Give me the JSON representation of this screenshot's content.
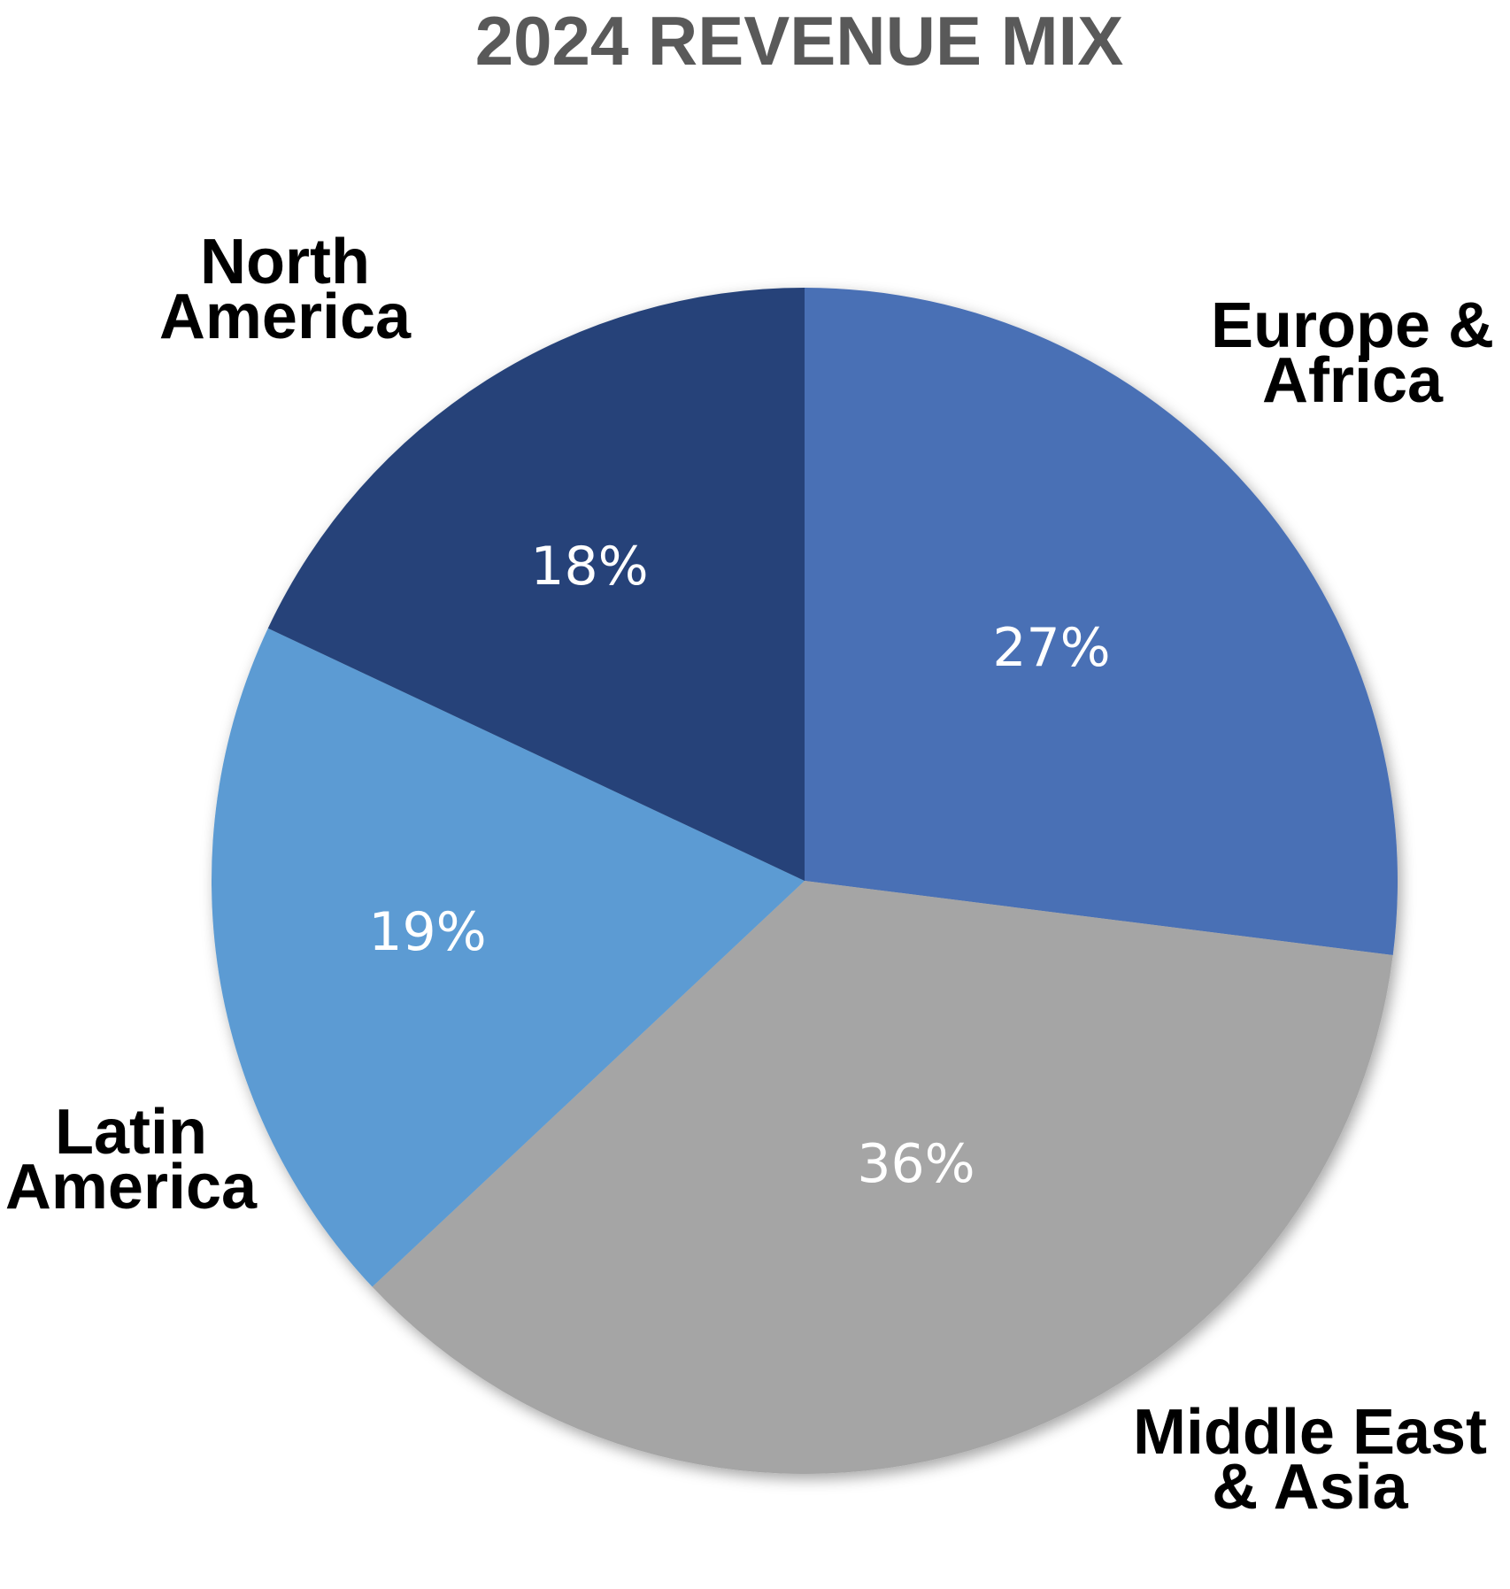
{
  "chart_data": {
    "type": "pie",
    "title": "2024 REVENUE MIX",
    "start_angle_deg": 0,
    "direction": "clockwise",
    "legend": "none",
    "slices": [
      {
        "category_lines": [
          "Europe &",
          "Africa"
        ],
        "value": 27,
        "label": "27%",
        "color": "#4a70b5"
      },
      {
        "category_lines": [
          "Middle East",
          "& Asia"
        ],
        "value": 36,
        "label": "36%",
        "color": "#a5a5a5"
      },
      {
        "category_lines": [
          "Latin",
          "America"
        ],
        "value": 19,
        "label": "19%",
        "color": "#5b9bd3"
      },
      {
        "category_lines": [
          "North",
          "America"
        ],
        "value": 18,
        "label": "18%",
        "color": "#254379"
      }
    ]
  }
}
